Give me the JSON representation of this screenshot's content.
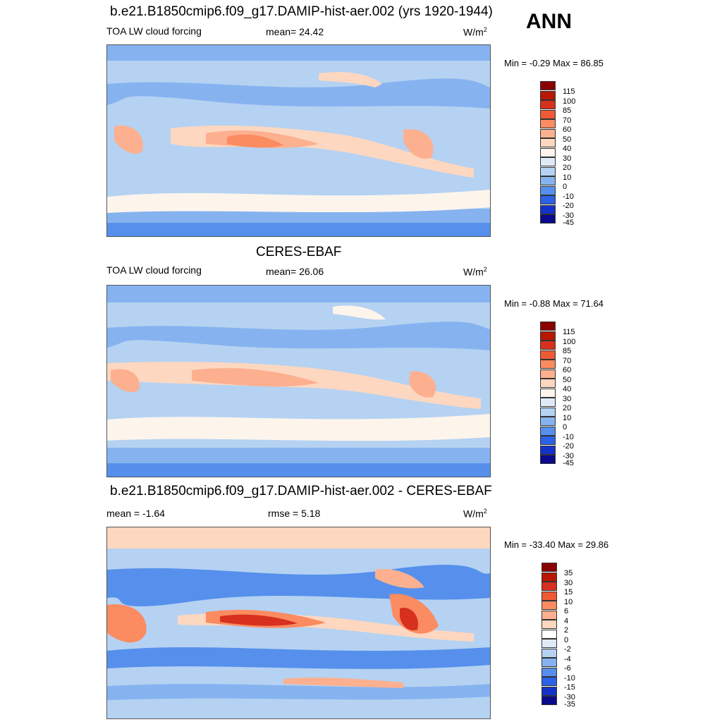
{
  "season": "ANN",
  "panels": [
    {
      "title": "b.e21.B1850cmip6.f09_g17.DAMIP-hist-aer.002 (yrs 1920-1944)",
      "left_label": "TOA LW cloud forcing",
      "mid_label": "mean=  24.42",
      "units": "W/m",
      "units_sup": "2",
      "minmax": "Min =  -0.29 Max =  86.85",
      "colorbar_labels": [
        "115",
        "100",
        "85",
        "70",
        "60",
        "50",
        "40",
        "30",
        "20",
        "10",
        "0",
        "-10",
        "-20",
        "-30",
        "-45"
      ],
      "colorbar_colors": [
        "#8b0000",
        "#b81800",
        "#d7301f",
        "#ef5a35",
        "#fb8b60",
        "#fcb08f",
        "#fdd7c0",
        "#fdf5ec",
        "#deebf7",
        "#b5d2f2",
        "#86b3f0",
        "#5690ec",
        "#2c62e6",
        "#1532c8",
        "#0a0a8c"
      ]
    },
    {
      "title": "CERES-EBAF",
      "left_label": "TOA LW cloud forcing",
      "mid_label": "mean=  26.06",
      "units": "W/m",
      "units_sup": "2",
      "minmax": "Min =  -0.88 Max =  71.64",
      "colorbar_labels": [
        "115",
        "100",
        "85",
        "70",
        "60",
        "50",
        "40",
        "30",
        "20",
        "10",
        "0",
        "-10",
        "-20",
        "-30",
        "-45"
      ],
      "colorbar_colors": [
        "#8b0000",
        "#b81800",
        "#d7301f",
        "#ef5a35",
        "#fb8b60",
        "#fcb08f",
        "#fdd7c0",
        "#fdf5ec",
        "#deebf7",
        "#b5d2f2",
        "#86b3f0",
        "#5690ec",
        "#2c62e6",
        "#1532c8",
        "#0a0a8c"
      ]
    },
    {
      "title": "b.e21.B1850cmip6.f09_g17.DAMIP-hist-aer.002 - CERES-EBAF",
      "left_label": "mean =  -1.64",
      "mid_label": "rmse =   5.18",
      "units": "W/m",
      "units_sup": "2",
      "minmax": "Min = -33.40 Max =  29.86",
      "colorbar_labels": [
        "35",
        "30",
        "15",
        "10",
        "6",
        "4",
        "2",
        "0",
        "-2",
        "-4",
        "-6",
        "-10",
        "-15",
        "-30",
        "-35"
      ],
      "colorbar_colors": [
        "#8b0000",
        "#b81800",
        "#d7301f",
        "#ef5a35",
        "#fb8b60",
        "#fcb08f",
        "#fdd7c0",
        "#ffffff",
        "#deebf7",
        "#b5d2f2",
        "#86b3f0",
        "#5690ec",
        "#2c62e6",
        "#1532c8",
        "#0a0a8c"
      ]
    }
  ]
}
